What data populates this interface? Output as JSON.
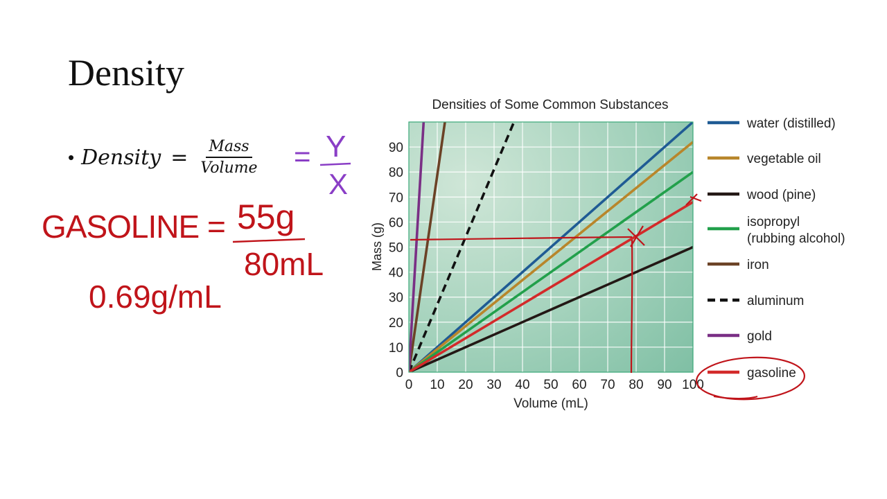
{
  "slide": {
    "title": "Density",
    "formula": {
      "lhs": "Density",
      "equals": "=",
      "numerator": "Mass",
      "denominator": "Volume"
    }
  },
  "handwriting": {
    "equals": "=",
    "y_over": "Y",
    "x_under": "X",
    "gasoline_label": "GASOLINE =",
    "mass_value": "55g",
    "volume_value": "80mL",
    "result": "0.69g/mL"
  },
  "colors": {
    "water": "#1f5b94",
    "vegetable_oil": "#b8862b",
    "wood": "#231815",
    "isopropyl": "#22a04b",
    "iron": "#6b4226",
    "aluminum": "#111111",
    "gold": "#7a2f85",
    "gasoline": "#d32a2a",
    "plot_bg": "#8ec7ad",
    "plot_border": "#3aa878",
    "pen_red": "#c0141a",
    "pen_purple": "#8a3ec6"
  },
  "chart_data": {
    "type": "line",
    "title": "Densities of Some Common Substances",
    "xlabel": "Volume (mL)",
    "ylabel": "Mass (g)",
    "xlim": [
      0,
      100
    ],
    "ylim": [
      0,
      100
    ],
    "x_ticks": [
      0,
      10,
      20,
      30,
      40,
      50,
      60,
      70,
      80,
      90,
      100
    ],
    "y_ticks": [
      0,
      10,
      20,
      30,
      40,
      50,
      60,
      70,
      80,
      90
    ],
    "grid": true,
    "legend_position": "right",
    "series": [
      {
        "name": "water (distilled)",
        "color_key": "water",
        "dashed": false,
        "x": [
          0,
          100
        ],
        "y": [
          0,
          100
        ]
      },
      {
        "name": "vegetable oil",
        "color_key": "vegetable_oil",
        "dashed": false,
        "x": [
          0,
          100
        ],
        "y": [
          0,
          92
        ]
      },
      {
        "name": "wood (pine)",
        "color_key": "wood",
        "dashed": false,
        "x": [
          0,
          100
        ],
        "y": [
          0,
          50
        ]
      },
      {
        "name": "isopropyl\n(rubbing alcohol)",
        "color_key": "isopropyl",
        "dashed": false,
        "x": [
          0,
          100
        ],
        "y": [
          0,
          80
        ]
      },
      {
        "name": "iron",
        "color_key": "iron",
        "dashed": false,
        "x": [
          0,
          12.7
        ],
        "y": [
          0,
          100
        ]
      },
      {
        "name": "aluminum",
        "color_key": "aluminum",
        "dashed": true,
        "x": [
          0,
          37
        ],
        "y": [
          0,
          100
        ]
      },
      {
        "name": "gold",
        "color_key": "gold",
        "dashed": false,
        "x": [
          0,
          5.2
        ],
        "y": [
          0,
          100
        ]
      },
      {
        "name": "gasoline",
        "color_key": "gasoline",
        "dashed": false,
        "x": [
          0,
          100
        ],
        "y": [
          0,
          68
        ]
      }
    ],
    "annotation": {
      "x": 80,
      "y": 55
    }
  }
}
